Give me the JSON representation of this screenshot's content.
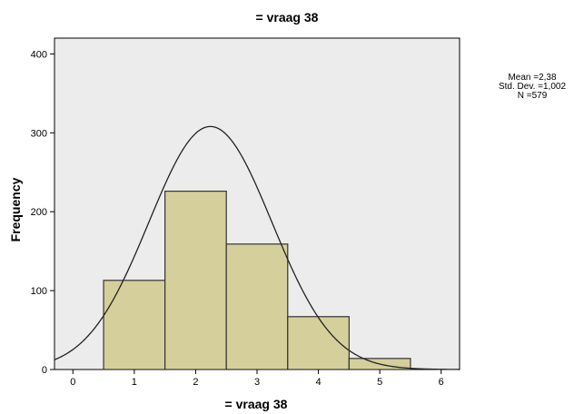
{
  "chart_data": {
    "type": "bar",
    "subtype": "histogram",
    "title": "= vraag 38",
    "xlabel": "= vraag 38",
    "ylabel": "Frequency",
    "xlim": [
      -0.3,
      6.3
    ],
    "ylim": [
      0,
      420
    ],
    "x_ticks": [
      "0",
      "1",
      "2",
      "3",
      "4",
      "5",
      "6"
    ],
    "y_ticks": [
      "0",
      "100",
      "200",
      "300",
      "400"
    ],
    "bins": [
      {
        "x0": 0.5,
        "x1": 1.5,
        "value": 113
      },
      {
        "x0": 1.5,
        "x1": 2.5,
        "value": 226
      },
      {
        "x0": 2.5,
        "x1": 3.5,
        "value": 159
      },
      {
        "x0": 3.5,
        "x1": 4.5,
        "value": 67
      },
      {
        "x0": 4.5,
        "x1": 5.5,
        "value": 14
      }
    ],
    "normal_curve": {
      "mean": 2.38,
      "std": 1.002,
      "n": 579,
      "peak_x": 2.24,
      "peak_value": 308
    },
    "stats": {
      "mean_label": "Mean =2,38",
      "std_label": "Std. Dev. =1,002",
      "n_label": "N =579"
    },
    "colors": {
      "plot_background": "#ececec",
      "bar_fill": "#d5cf9b",
      "bar_stroke": "#333333",
      "curve": "#222222"
    },
    "grid": false,
    "legend": "none"
  }
}
